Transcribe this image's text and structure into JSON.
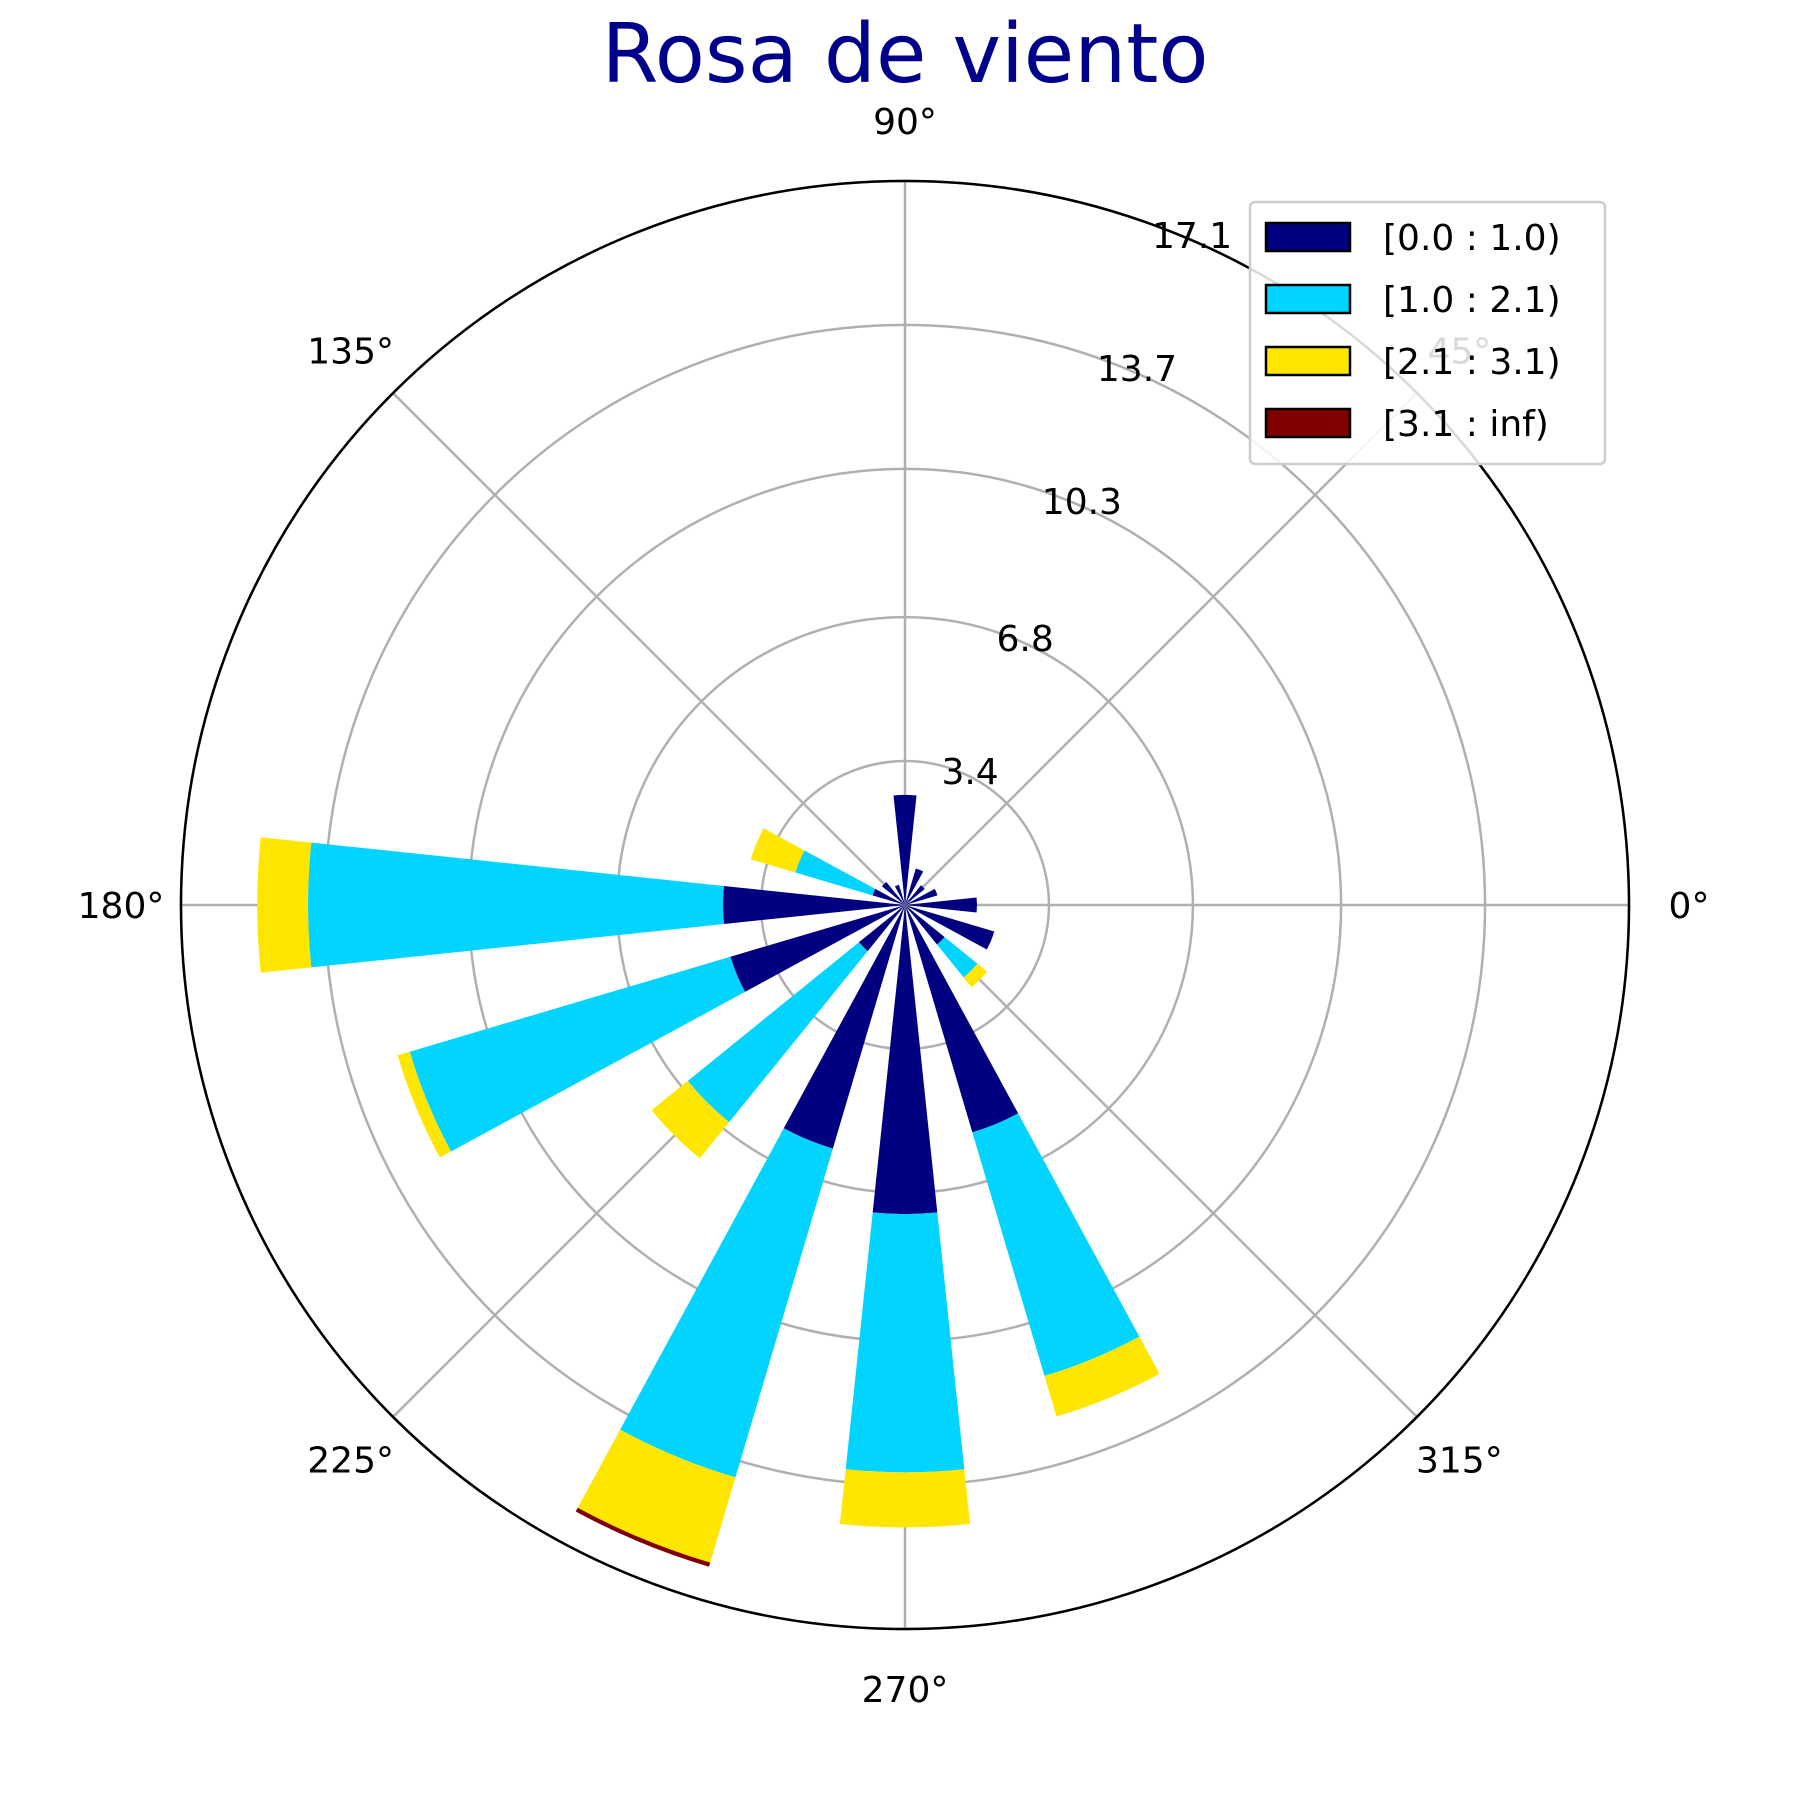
{
  "chart_data": {
    "type": "windrose",
    "title": "Rosa de viento",
    "angle_ticks": [
      {
        "deg": 0,
        "label": "0°"
      },
      {
        "deg": 45,
        "label": "45°"
      },
      {
        "deg": 90,
        "label": "90°"
      },
      {
        "deg": 135,
        "label": "135°"
      },
      {
        "deg": 180,
        "label": "180°"
      },
      {
        "deg": 225,
        "label": "225°"
      },
      {
        "deg": 270,
        "label": "270°"
      },
      {
        "deg": 315,
        "label": "315°"
      }
    ],
    "radial_ticks": [
      {
        "value": 3.4,
        "label": "3.4"
      },
      {
        "value": 6.8,
        "label": "6.8"
      },
      {
        "value": 10.3,
        "label": "10.3"
      },
      {
        "value": 13.7,
        "label": "13.7"
      },
      {
        "value": 17.1,
        "label": "17.1"
      }
    ],
    "rmax": 17.1,
    "angle_direction": "counterclockwise",
    "angle_zero": "east",
    "grid": true,
    "legend_position": "top-right",
    "sector_width_deg": 12,
    "series": [
      {
        "name": "[0.0 : 1.0)",
        "color": "#000080"
      },
      {
        "name": "[1.0 : 2.1)",
        "color": "#00d4ff"
      },
      {
        "name": "[2.1 : 3.1)",
        "color": "#ffe600"
      },
      {
        "name": "[3.1 : inf)",
        "color": "#800000"
      }
    ],
    "directions": [
      {
        "deg": 0,
        "values": [
          1.7,
          0,
          0,
          0
        ]
      },
      {
        "deg": 22.5,
        "values": [
          0.8,
          0,
          0,
          0
        ]
      },
      {
        "deg": 45,
        "values": [
          0.6,
          0,
          0,
          0
        ]
      },
      {
        "deg": 67.5,
        "values": [
          0.9,
          0,
          0,
          0
        ]
      },
      {
        "deg": 90,
        "values": [
          2.6,
          0,
          0,
          0
        ]
      },
      {
        "deg": 112.5,
        "values": [
          0.5,
          0,
          0,
          0
        ]
      },
      {
        "deg": 135,
        "values": [
          0.7,
          0,
          0,
          0
        ]
      },
      {
        "deg": 157.5,
        "values": [
          0.8,
          1.9,
          1.1,
          0
        ]
      },
      {
        "deg": 180,
        "values": [
          4.3,
          9.8,
          1.2,
          0
        ]
      },
      {
        "deg": 202.5,
        "values": [
          4.3,
          7.9,
          0.3,
          0
        ]
      },
      {
        "deg": 225,
        "values": [
          1.4,
          5.2,
          1.1,
          0
        ]
      },
      {
        "deg": 247.5,
        "values": [
          6.0,
          8.1,
          2.1,
          0.1
        ]
      },
      {
        "deg": 270,
        "values": [
          7.3,
          6.1,
          1.3,
          0
        ]
      },
      {
        "deg": 292.5,
        "values": [
          5.6,
          6.0,
          1.0,
          0
        ]
      },
      {
        "deg": 315,
        "values": [
          1.2,
          1.0,
          0.3,
          0
        ]
      },
      {
        "deg": 337.5,
        "values": [
          2.2,
          0,
          0,
          0
        ]
      }
    ]
  }
}
